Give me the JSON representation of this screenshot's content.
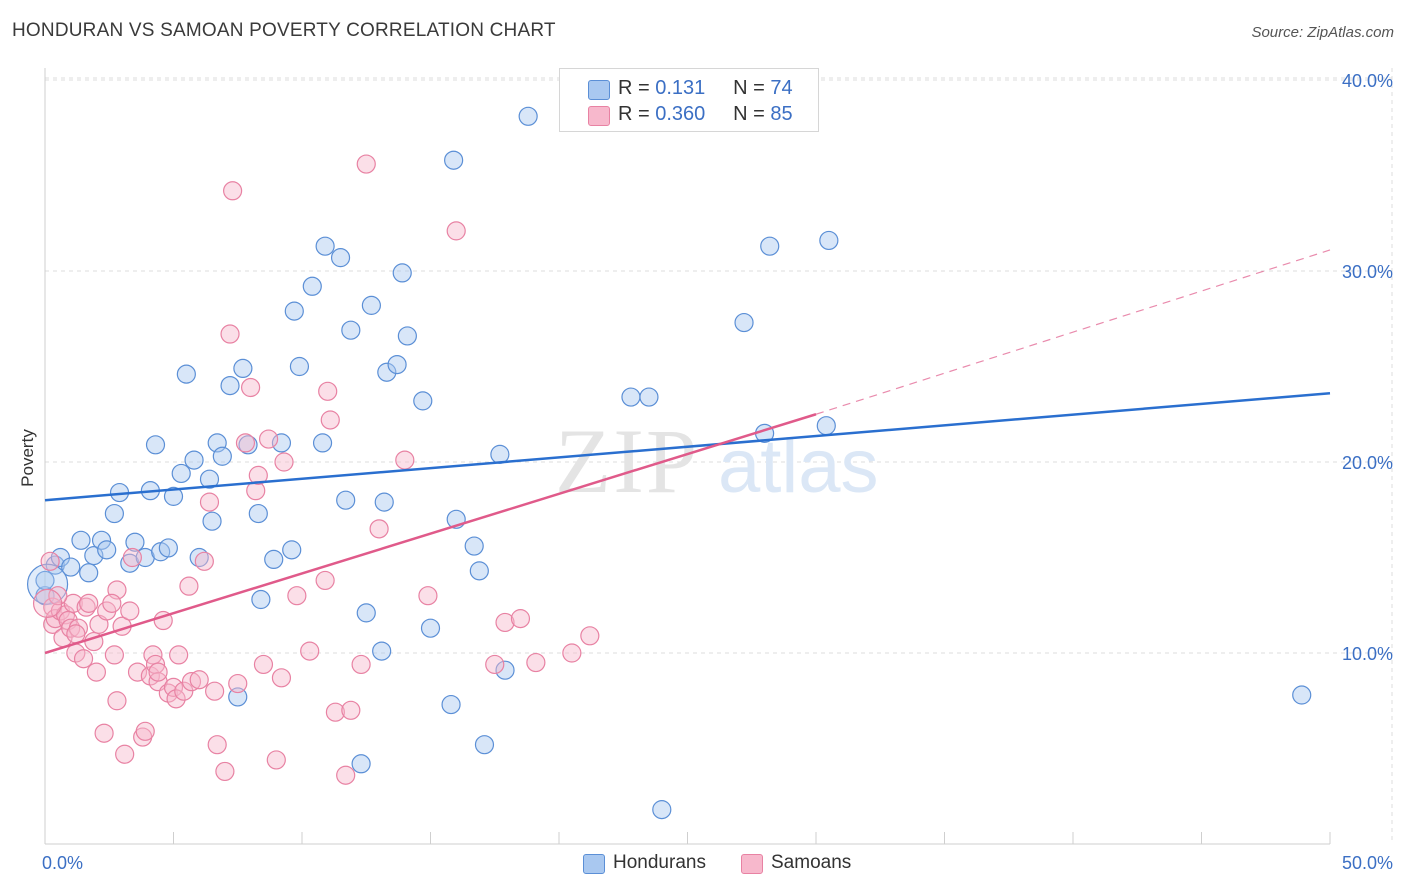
{
  "header": {
    "title": "HONDURAN VS SAMOAN POVERTY CORRELATION CHART",
    "source": "Source: ZipAtlas.com"
  },
  "legend_top": {
    "rows": [
      {
        "r_label": "R = ",
        "r_value": "0.131",
        "n_label": "N = ",
        "n_value": "74"
      },
      {
        "r_label": "R = ",
        "r_value": "0.360",
        "n_label": "N = ",
        "n_value": "85"
      }
    ]
  },
  "watermark": {
    "zip": "ZIP",
    "atlas": "atlas"
  },
  "colors": {
    "hondurans_fill": "#a9c8f0",
    "hondurans_stroke": "#5b8fd6",
    "hondurans_line": "#2a6fcf",
    "samoans_fill": "#f7b8cc",
    "samoans_stroke": "#e882a3",
    "samoans_line": "#e05a8a",
    "tick_label": "#3b6fc4",
    "grid": "#dddddd"
  },
  "chart_data": {
    "type": "scatter",
    "title": "HONDURAN VS SAMOAN POVERTY CORRELATION CHART",
    "xlabel": "",
    "ylabel": "Poverty",
    "xlim": [
      0,
      50
    ],
    "ylim": [
      0,
      40
    ],
    "x_tick_labels": [
      "0.0%",
      "50.0%"
    ],
    "y_ticks": [
      10,
      20,
      30,
      40
    ],
    "y_tick_labels": [
      "10.0%",
      "20.0%",
      "30.0%",
      "40.0%"
    ],
    "grid": true,
    "legend_position": "bottom",
    "series": [
      {
        "name": "Hondurans",
        "trend": {
          "x": [
            0,
            50
          ],
          "y": [
            18.0,
            23.6
          ],
          "dashed_after": null
        },
        "points": [
          [
            0.0,
            13.0
          ],
          [
            0.0,
            13.8
          ],
          [
            0.4,
            14.6
          ],
          [
            0.6,
            15.0
          ],
          [
            1.0,
            14.5
          ],
          [
            1.4,
            15.9
          ],
          [
            1.7,
            14.2
          ],
          [
            1.9,
            15.1
          ],
          [
            2.2,
            15.9
          ],
          [
            2.4,
            15.4
          ],
          [
            2.7,
            17.3
          ],
          [
            2.9,
            18.4
          ],
          [
            3.3,
            14.7
          ],
          [
            3.5,
            15.8
          ],
          [
            3.9,
            15.0
          ],
          [
            4.1,
            18.5
          ],
          [
            4.3,
            20.9
          ],
          [
            4.5,
            15.3
          ],
          [
            4.8,
            15.5
          ],
          [
            5.0,
            18.2
          ],
          [
            5.3,
            19.4
          ],
          [
            5.5,
            24.6
          ],
          [
            5.8,
            20.1
          ],
          [
            6.0,
            15.0
          ],
          [
            6.4,
            19.1
          ],
          [
            6.5,
            16.9
          ],
          [
            6.7,
            21.0
          ],
          [
            6.9,
            20.3
          ],
          [
            7.2,
            24.0
          ],
          [
            7.5,
            7.7
          ],
          [
            7.7,
            24.9
          ],
          [
            7.9,
            20.9
          ],
          [
            8.3,
            17.3
          ],
          [
            8.4,
            12.8
          ],
          [
            8.9,
            14.9
          ],
          [
            9.2,
            21.0
          ],
          [
            9.6,
            15.4
          ],
          [
            9.7,
            27.9
          ],
          [
            9.9,
            25.0
          ],
          [
            10.4,
            29.2
          ],
          [
            10.8,
            21.0
          ],
          [
            10.9,
            31.3
          ],
          [
            11.5,
            30.7
          ],
          [
            11.7,
            18.0
          ],
          [
            11.9,
            26.9
          ],
          [
            12.3,
            4.2
          ],
          [
            12.5,
            12.1
          ],
          [
            12.7,
            28.2
          ],
          [
            13.1,
            10.1
          ],
          [
            13.2,
            17.9
          ],
          [
            13.3,
            24.7
          ],
          [
            13.7,
            25.1
          ],
          [
            13.9,
            29.9
          ],
          [
            14.1,
            26.6
          ],
          [
            14.7,
            23.2
          ],
          [
            15.0,
            11.3
          ],
          [
            15.8,
            7.3
          ],
          [
            16.0,
            17.0
          ],
          [
            15.9,
            35.8
          ],
          [
            16.7,
            15.6
          ],
          [
            16.9,
            14.3
          ],
          [
            17.1,
            5.2
          ],
          [
            17.7,
            20.4
          ],
          [
            17.9,
            9.1
          ],
          [
            18.8,
            38.1
          ],
          [
            22.8,
            23.4
          ],
          [
            23.5,
            23.4
          ],
          [
            24.0,
            1.8
          ],
          [
            27.2,
            27.3
          ],
          [
            28.0,
            21.5
          ],
          [
            28.2,
            31.3
          ],
          [
            30.5,
            31.6
          ],
          [
            30.4,
            21.9
          ],
          [
            48.9,
            7.8
          ]
        ]
      },
      {
        "name": "Samoans",
        "trend": {
          "x": [
            0,
            30
          ],
          "y": [
            10.0,
            22.5
          ],
          "dashed_after": 30,
          "dashed_to": [
            50,
            31.1
          ]
        },
        "points": [
          [
            0.2,
            14.8
          ],
          [
            0.3,
            12.4
          ],
          [
            0.3,
            11.5
          ],
          [
            0.4,
            11.8
          ],
          [
            0.6,
            12.2
          ],
          [
            0.7,
            10.8
          ],
          [
            0.8,
            12.0
          ],
          [
            0.9,
            11.7
          ],
          [
            1.0,
            11.3
          ],
          [
            1.1,
            12.6
          ],
          [
            1.2,
            10.0
          ],
          [
            1.3,
            11.3
          ],
          [
            1.5,
            9.7
          ],
          [
            1.6,
            12.4
          ],
          [
            1.7,
            12.6
          ],
          [
            1.9,
            10.6
          ],
          [
            2.0,
            9.0
          ],
          [
            2.1,
            11.5
          ],
          [
            2.3,
            5.8
          ],
          [
            2.4,
            12.2
          ],
          [
            2.7,
            9.9
          ],
          [
            2.8,
            7.5
          ],
          [
            2.8,
            13.3
          ],
          [
            3.0,
            11.4
          ],
          [
            3.1,
            4.7
          ],
          [
            3.3,
            12.2
          ],
          [
            3.4,
            15.0
          ],
          [
            3.6,
            9.0
          ],
          [
            3.8,
            5.6
          ],
          [
            3.9,
            5.9
          ],
          [
            4.1,
            8.8
          ],
          [
            4.2,
            9.9
          ],
          [
            4.3,
            9.4
          ],
          [
            4.4,
            8.5
          ],
          [
            4.6,
            11.7
          ],
          [
            4.8,
            7.9
          ],
          [
            5.0,
            8.2
          ],
          [
            5.1,
            7.6
          ],
          [
            5.2,
            9.9
          ],
          [
            5.4,
            8.0
          ],
          [
            5.6,
            13.5
          ],
          [
            5.7,
            8.5
          ],
          [
            6.0,
            8.6
          ],
          [
            6.2,
            14.8
          ],
          [
            6.4,
            17.9
          ],
          [
            6.6,
            8.0
          ],
          [
            6.7,
            5.2
          ],
          [
            7.0,
            3.8
          ],
          [
            7.2,
            26.7
          ],
          [
            7.3,
            34.2
          ],
          [
            7.5,
            8.4
          ],
          [
            7.8,
            21.0
          ],
          [
            8.0,
            23.9
          ],
          [
            8.2,
            18.5
          ],
          [
            8.3,
            19.3
          ],
          [
            8.5,
            9.4
          ],
          [
            8.7,
            21.2
          ],
          [
            9.0,
            4.4
          ],
          [
            9.2,
            8.7
          ],
          [
            9.3,
            20.0
          ],
          [
            9.8,
            13.0
          ],
          [
            10.3,
            10.1
          ],
          [
            10.9,
            13.8
          ],
          [
            11.0,
            23.7
          ],
          [
            11.1,
            22.2
          ],
          [
            11.3,
            6.9
          ],
          [
            11.7,
            3.6
          ],
          [
            11.9,
            7.0
          ],
          [
            12.3,
            9.4
          ],
          [
            12.5,
            35.6
          ],
          [
            13.0,
            16.5
          ],
          [
            14.0,
            20.1
          ],
          [
            14.9,
            13.0
          ],
          [
            16.0,
            32.1
          ],
          [
            17.5,
            9.4
          ],
          [
            17.9,
            11.6
          ],
          [
            18.5,
            11.8
          ],
          [
            19.1,
            9.5
          ],
          [
            20.5,
            10.0
          ],
          [
            21.2,
            10.9
          ],
          [
            22.5,
            38.0
          ],
          [
            0.5,
            13.0
          ],
          [
            1.2,
            11.0
          ],
          [
            2.6,
            12.6
          ],
          [
            4.4,
            9.0
          ]
        ]
      }
    ]
  },
  "legend_bottom": {
    "items": [
      "Hondurans",
      "Samoans"
    ]
  }
}
